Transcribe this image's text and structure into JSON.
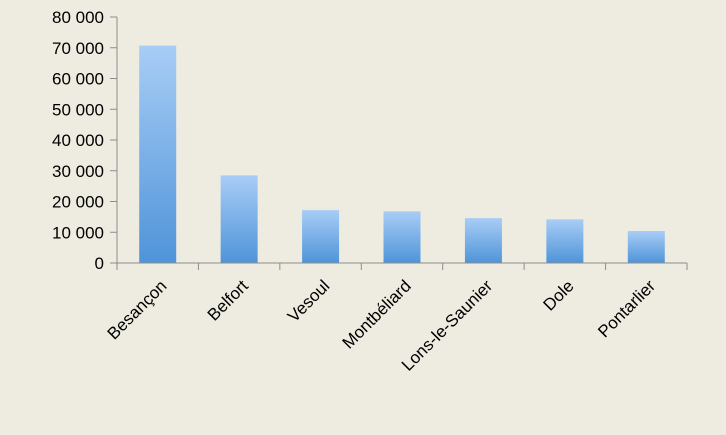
{
  "chart_data": {
    "type": "bar",
    "title": "",
    "xlabel": "",
    "ylabel": "",
    "categories": [
      "Besançon",
      "Belfort",
      "Vesoul",
      "Montbéliard",
      "Lons-le-Saunier",
      "Dole",
      "Pontarlier"
    ],
    "values": [
      70700,
      28500,
      17200,
      16800,
      14600,
      14200,
      10400
    ],
    "ylim": [
      0,
      80000
    ],
    "yticks": [
      0,
      10000,
      20000,
      30000,
      40000,
      50000,
      60000,
      70000,
      80000
    ],
    "ytick_labels": [
      "0",
      "10 000",
      "20 000",
      "30 000",
      "40 000",
      "50 000",
      "60 000",
      "70 000",
      "80 000"
    ],
    "grid": false,
    "legend": "none",
    "bar_color_top": "#a8cdf6",
    "bar_color_bottom": "#4f94d9",
    "axis_color": "#8c8c8c",
    "background": "#eeece1"
  }
}
